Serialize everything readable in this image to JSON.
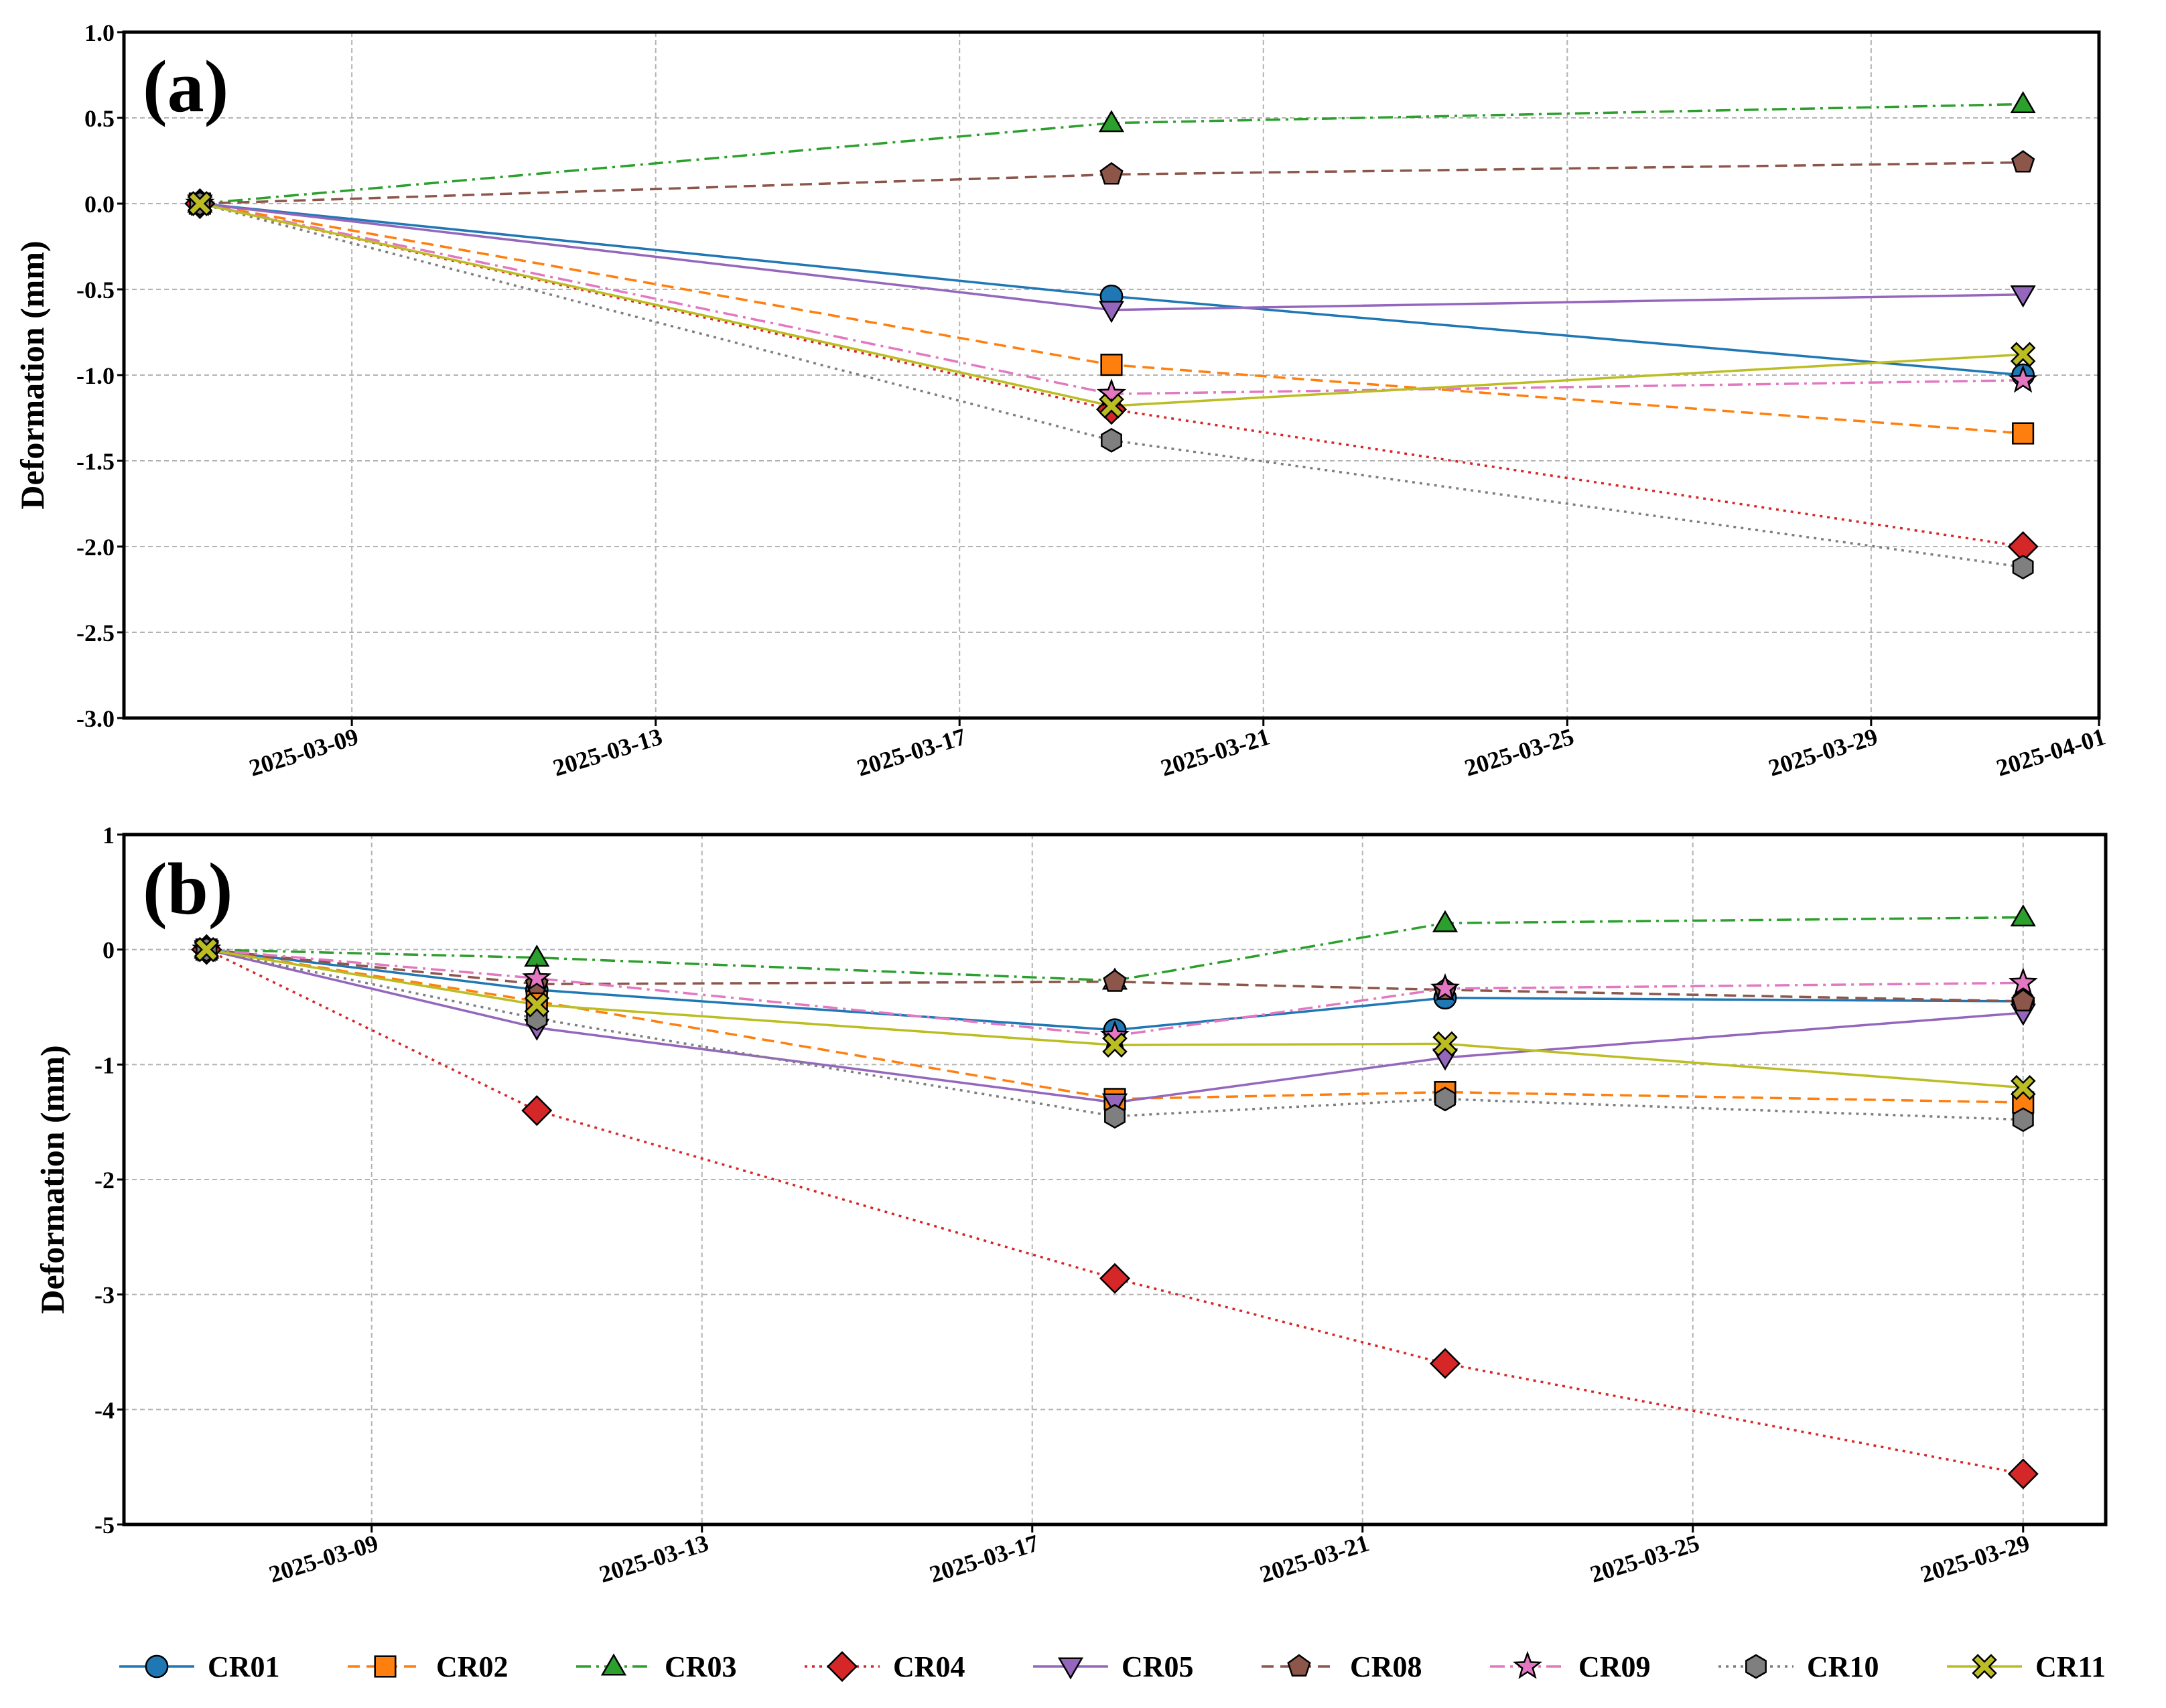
{
  "colors": {
    "CR01": "#1f77b4",
    "CR02": "#ff7f0e",
    "CR03": "#2ca02c",
    "CR04": "#d62728",
    "CR05": "#9467bd",
    "CR08": "#8c564b",
    "CR09": "#e377c2",
    "CR10": "#7f7f7f",
    "CR11": "#bcbd22"
  },
  "legend": [
    "CR01",
    "CR02",
    "CR03",
    "CR04",
    "CR05",
    "CR08",
    "CR09",
    "CR10",
    "CR11"
  ],
  "chart_data": [
    {
      "type": "line",
      "panel_label": "(a)",
      "ylabel": "Deformation (mm)",
      "xlabel": "",
      "ylim": [
        -3.0,
        1.0
      ],
      "yticks": [
        1.0,
        0.5,
        0.0,
        -0.5,
        -1.0,
        -1.5,
        -2.0,
        -2.5,
        -3.0
      ],
      "ytick_labels": [
        "1.0",
        "0.5",
        "0.0",
        "-0.5",
        "-1.0",
        "-1.5",
        "-2.0",
        "-2.5",
        "-3.0"
      ],
      "xlim": [
        "2025-03-06",
        "2025-04-01"
      ],
      "xtick_labels": [
        "2025-03-09",
        "2025-03-13",
        "2025-03-17",
        "2025-03-21",
        "2025-03-25",
        "2025-03-29",
        "2025-04-01"
      ],
      "x": [
        "2025-03-07",
        "2025-03-19",
        "2025-03-31"
      ],
      "grid": true,
      "series": [
        {
          "name": "CR01",
          "values": [
            0,
            -0.54,
            -1.0
          ]
        },
        {
          "name": "CR02",
          "values": [
            0,
            -0.94,
            -1.34
          ]
        },
        {
          "name": "CR03",
          "values": [
            0,
            0.47,
            0.58
          ]
        },
        {
          "name": "CR04",
          "values": [
            0,
            -1.2,
            -2.0
          ]
        },
        {
          "name": "CR05",
          "values": [
            0,
            -0.62,
            -0.53
          ]
        },
        {
          "name": "CR08",
          "values": [
            0,
            0.17,
            0.24
          ]
        },
        {
          "name": "CR09",
          "values": [
            0,
            -1.11,
            -1.03
          ]
        },
        {
          "name": "CR10",
          "values": [
            0,
            -1.38,
            -2.12
          ]
        },
        {
          "name": "CR11",
          "values": [
            0,
            -1.18,
            -0.88
          ]
        }
      ]
    },
    {
      "type": "line",
      "panel_label": "(b)",
      "ylabel": "Deformation (mm)",
      "xlabel": "",
      "ylim": [
        -5,
        1
      ],
      "yticks": [
        1,
        0,
        -1,
        -2,
        -3,
        -4,
        -5
      ],
      "ytick_labels": [
        "1",
        "0",
        "-1",
        "-2",
        "-3",
        "-4",
        "-5"
      ],
      "xlim": [
        "2025-03-06",
        "2025-03-30"
      ],
      "xtick_labels": [
        "2025-03-09",
        "2025-03-13",
        "2025-03-17",
        "2025-03-21",
        "2025-03-25",
        "2025-03-29"
      ],
      "x": [
        "2025-03-07",
        "2025-03-11",
        "2025-03-18",
        "2025-03-22",
        "2025-03-29"
      ],
      "grid": true,
      "series": [
        {
          "name": "CR01",
          "values": [
            0,
            -0.35,
            -0.7,
            -0.42,
            -0.45
          ]
        },
        {
          "name": "CR02",
          "values": [
            0,
            -0.45,
            -1.3,
            -1.24,
            -1.33
          ]
        },
        {
          "name": "CR03",
          "values": [
            0,
            -0.07,
            -0.27,
            0.23,
            0.28
          ]
        },
        {
          "name": "CR04",
          "values": [
            0,
            -1.4,
            -2.86,
            -3.6,
            -4.56
          ]
        },
        {
          "name": "CR05",
          "values": [
            0,
            -0.68,
            -1.33,
            -0.94,
            -0.55
          ]
        },
        {
          "name": "CR08",
          "values": [
            0,
            -0.3,
            -0.28,
            -0.35,
            -0.45
          ]
        },
        {
          "name": "CR09",
          "values": [
            0,
            -0.25,
            -0.75,
            -0.34,
            -0.29
          ]
        },
        {
          "name": "CR10",
          "values": [
            0,
            -0.6,
            -1.45,
            -1.3,
            -1.48
          ]
        },
        {
          "name": "CR11",
          "values": [
            0,
            -0.48,
            -0.83,
            -0.82,
            -1.2
          ]
        }
      ]
    }
  ]
}
